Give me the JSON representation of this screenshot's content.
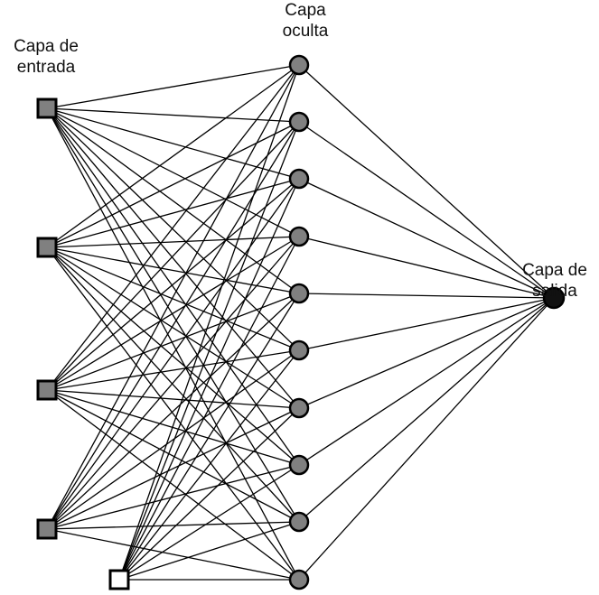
{
  "labels": {
    "input": {
      "line1": "Capa de",
      "line2": "entrada"
    },
    "hidden": {
      "line1": "Capa",
      "line2": "oculta"
    },
    "output": {
      "line1": "Capa de",
      "line2": "salida"
    }
  },
  "layers": {
    "input": {
      "node_count": 4,
      "bias_node_count": 1
    },
    "hidden": {
      "node_count": 10
    },
    "output": {
      "node_count": 1
    }
  },
  "colors": {
    "node_fill": "#808080",
    "bias_fill": "#ffffff",
    "output_fill": "#111111",
    "stroke": "#000000"
  }
}
